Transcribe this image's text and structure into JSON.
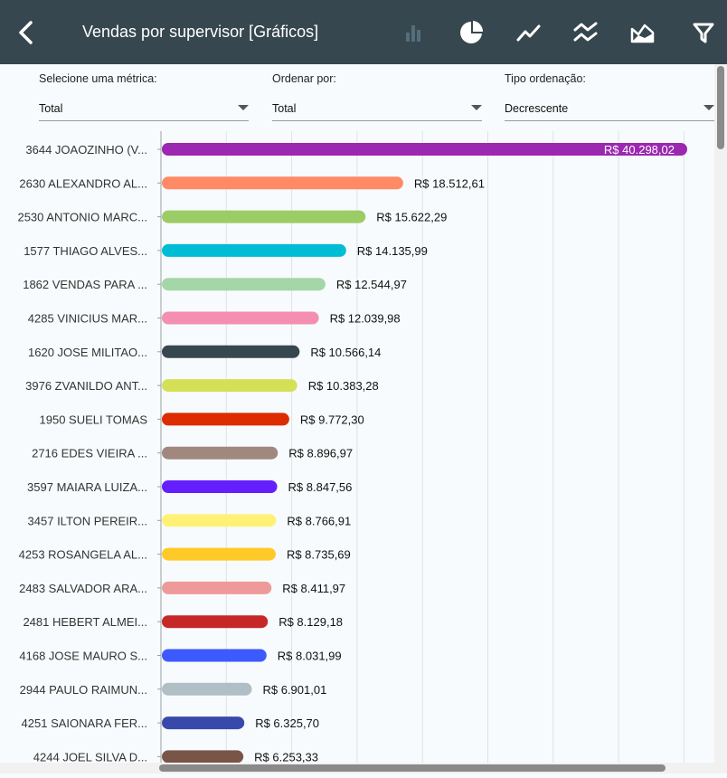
{
  "header": {
    "title": "Vendas por supervisor [Gráficos]",
    "icons": [
      "back-arrow-icon",
      "bar-chart-icon",
      "pie-chart-icon",
      "line-chart-icon",
      "multi-line-chart-icon",
      "area-chart-icon",
      "filter-icon"
    ]
  },
  "filters": {
    "metric_label": "Selecione uma métrica:",
    "metric_value": "Total",
    "order_label": "Ordenar por:",
    "order_value": "Total",
    "sort_label": "Tipo ordenação:",
    "sort_value": "Decrescente"
  },
  "chart_data": {
    "type": "bar",
    "orientation": "horizontal",
    "grid": true,
    "xlim": [
      0,
      45000
    ],
    "categories": [
      "3644 JOAOZINHO (V...",
      "2630 ALEXANDRO AL...",
      "2530 ANTONIO MARC...",
      "1577 THIAGO ALVES...",
      "1862 VENDAS PARA ...",
      "4285 VINICIUS MAR...",
      "1620 JOSE MILITAO...",
      "3976 ZVANILDO ANT...",
      "1950 SUELI TOMAS",
      "2716 EDES VIEIRA ...",
      "3597 MAIARA LUIZA...",
      "3457 ILTON PEREIR...",
      "4253 ROSANGELA AL...",
      "2483 SALVADOR ARA...",
      "2481 HEBERT ALMEI...",
      "4168 JOSE MAURO S...",
      "2944 PAULO RAIMUN...",
      "4251 SAIONARA FER...",
      "4244 JOEL SILVA D..."
    ],
    "values": [
      40298.02,
      18512.61,
      15622.29,
      14135.99,
      12544.97,
      12039.98,
      10566.14,
      10383.28,
      9772.3,
      8896.97,
      8847.56,
      8766.91,
      8735.69,
      8411.97,
      8129.18,
      8031.99,
      6901.01,
      6325.7,
      6253.33
    ],
    "value_labels": [
      "R$ 40.298,02",
      "R$ 18.512,61",
      "R$ 15.622,29",
      "R$ 14.135,99",
      "R$ 12.544,97",
      "R$ 12.039,98",
      "R$ 10.566,14",
      "R$ 10.383,28",
      "R$ 9.772,30",
      "R$ 8.896,97",
      "R$ 8.847,56",
      "R$ 8.766,91",
      "R$ 8.735,69",
      "R$ 8.411,97",
      "R$ 8.129,18",
      "R$ 8.031,99",
      "R$ 6.901,01",
      "R$ 6.325,70",
      "R$ 6.253,33"
    ],
    "colors": [
      "#9c27b0",
      "#ff8a65",
      "#9ccc65",
      "#00bcd4",
      "#a5d6a7",
      "#f48fb1",
      "#37474f",
      "#d4e157",
      "#dd2c00",
      "#a1887f",
      "#651fff",
      "#fff176",
      "#ffca28",
      "#ef9a9a",
      "#c62828",
      "#3d5afe",
      "#b0bec5",
      "#3949ab",
      "#795548"
    ]
  }
}
